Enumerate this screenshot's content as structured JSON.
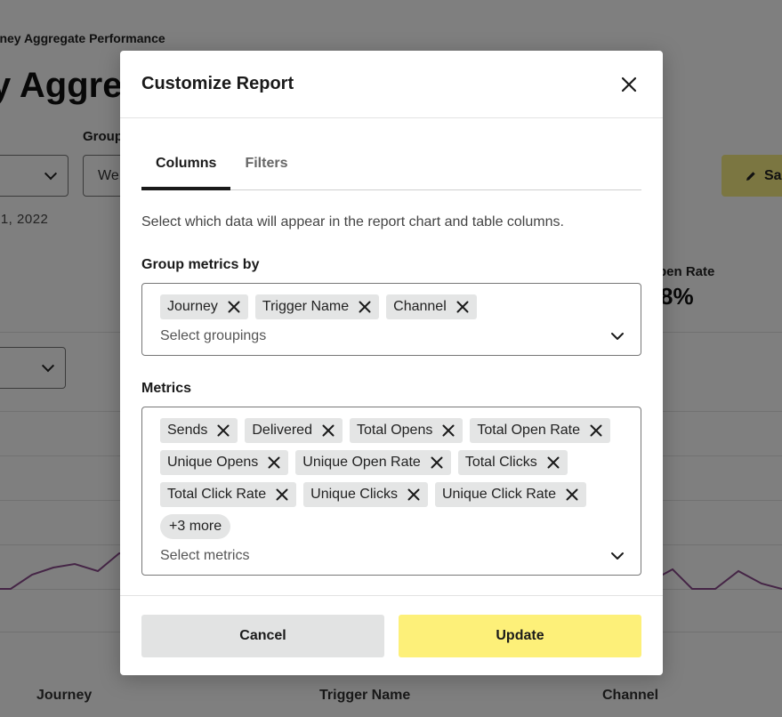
{
  "background": {
    "breadcrumb": "rney Aggregate Performance",
    "page_title": "y Aggreg",
    "group_label": "Group",
    "group_select_value": "We",
    "date_text": "31, 2022",
    "save_label": "Sa",
    "stat_label": "pen Rate",
    "stat_value": "8%",
    "table_columns": [
      "Journey",
      "Trigger Name",
      "Channel"
    ],
    "chart_color": "#8a4a8c"
  },
  "modal": {
    "title": "Customize Report",
    "tabs": [
      {
        "label": "Columns",
        "active": true
      },
      {
        "label": "Filters",
        "active": false
      }
    ],
    "description": "Select which data will appear in the report chart and table columns.",
    "group_metrics": {
      "label": "Group metrics by",
      "chips": [
        "Journey",
        "Trigger Name",
        "Channel"
      ],
      "placeholder": "Select groupings"
    },
    "metrics": {
      "label": "Metrics",
      "chips": [
        "Sends",
        "Delivered",
        "Total Opens",
        "Total Open Rate",
        "Unique Opens",
        "Unique Open Rate",
        "Total Clicks",
        "Total Click Rate",
        "Unique Clicks",
        "Unique Click Rate"
      ],
      "more_label": "+3 more",
      "placeholder": "Select metrics"
    },
    "footer": {
      "cancel_label": "Cancel",
      "update_label": "Update"
    }
  },
  "colors": {
    "primary_button": "#fdf079",
    "secondary_button": "#e2e3e3",
    "chip_bg": "#e4e5e5"
  }
}
